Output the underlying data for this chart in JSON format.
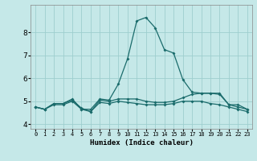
{
  "title": "",
  "xlabel": "Humidex (Indice chaleur)",
  "xlim": [
    -0.5,
    23.5
  ],
  "ylim": [
    3.8,
    9.2
  ],
  "yticks": [
    4,
    5,
    6,
    7,
    8
  ],
  "xticks": [
    0,
    1,
    2,
    3,
    4,
    5,
    6,
    7,
    8,
    9,
    10,
    11,
    12,
    13,
    14,
    15,
    16,
    17,
    18,
    19,
    20,
    21,
    22,
    23
  ],
  "bg_color": "#c5e8e8",
  "grid_color": "#9ecece",
  "line_color": "#1a6b6b",
  "curves": [
    {
      "x": [
        0,
        1,
        2,
        3,
        4,
        5,
        6,
        7,
        8,
        9,
        10,
        11,
        12,
        13,
        14,
        15,
        16,
        17,
        18,
        19,
        20,
        21,
        22,
        23
      ],
      "y": [
        4.75,
        4.65,
        4.9,
        4.9,
        5.1,
        4.65,
        4.65,
        5.1,
        5.05,
        5.75,
        6.85,
        8.5,
        8.65,
        8.2,
        7.25,
        7.1,
        5.95,
        5.4,
        5.35,
        5.35,
        5.35,
        4.85,
        4.85,
        4.65
      ]
    },
    {
      "x": [
        0,
        1,
        2,
        3,
        4,
        5,
        6,
        7,
        8,
        9,
        10,
        11,
        12,
        13,
        14,
        15,
        16,
        17,
        18,
        19,
        20,
        21,
        22,
        23
      ],
      "y": [
        4.75,
        4.65,
        4.9,
        4.9,
        5.05,
        4.7,
        4.55,
        5.05,
        5.0,
        5.1,
        5.1,
        5.1,
        5.0,
        4.95,
        4.95,
        5.0,
        5.15,
        5.3,
        5.35,
        5.35,
        5.3,
        4.85,
        4.75,
        4.65
      ]
    },
    {
      "x": [
        0,
        1,
        2,
        3,
        4,
        5,
        6,
        7,
        8,
        9,
        10,
        11,
        12,
        13,
        14,
        15,
        16,
        17,
        18,
        19,
        20,
        21,
        22,
        23
      ],
      "y": [
        4.75,
        4.65,
        4.85,
        4.85,
        5.0,
        4.65,
        4.55,
        4.95,
        4.9,
        5.0,
        4.95,
        4.9,
        4.85,
        4.85,
        4.85,
        4.9,
        5.0,
        5.0,
        5.0,
        4.9,
        4.85,
        4.75,
        4.65,
        4.55
      ]
    }
  ]
}
